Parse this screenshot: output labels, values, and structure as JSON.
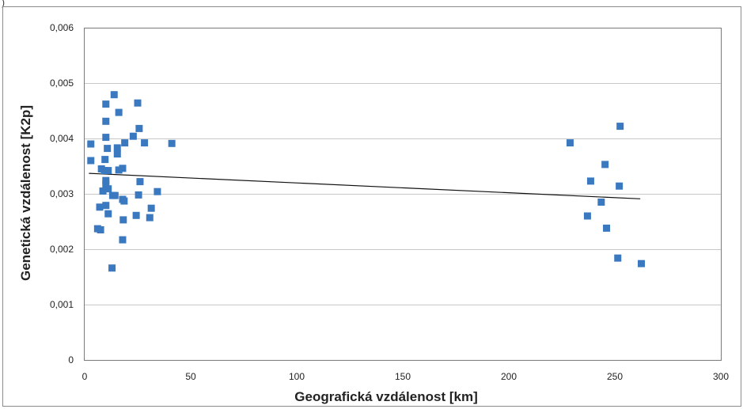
{
  "corner_mark": ")",
  "chart_data": {
    "type": "scatter",
    "xlabel": "Geografická vzdálenost [km]",
    "ylabel": "Genetická vzdálenost  [K2p]",
    "xlim": [
      0,
      300
    ],
    "ylim": [
      0,
      0.006
    ],
    "x_ticks": [
      0,
      50,
      100,
      150,
      200,
      250,
      300
    ],
    "x_tick_labels": [
      "0",
      "50",
      "100",
      "150",
      "200",
      "250",
      "300"
    ],
    "y_ticks": [
      0,
      0.001,
      0.002,
      0.003,
      0.004,
      0.005,
      0.006
    ],
    "y_tick_labels": [
      "0",
      "0,001",
      "0,002",
      "0,003",
      "0,004",
      "0,005",
      "0,006"
    ],
    "grid": "horizontal",
    "legend": "none",
    "marker_color": "#3a78c0",
    "trendline_color": "#111111",
    "trendline": {
      "x": [
        2,
        262
      ],
      "y": [
        0.00337,
        0.00291
      ]
    },
    "points": [
      [
        2.9,
        0.0039
      ],
      [
        2.9,
        0.0036
      ],
      [
        6.1,
        0.00237
      ],
      [
        7.5,
        0.00235
      ],
      [
        7.1,
        0.00276
      ],
      [
        8.6,
        0.00305
      ],
      [
        7.9,
        0.00345
      ],
      [
        9.3,
        0.00342
      ],
      [
        9.6,
        0.00362
      ],
      [
        10.0,
        0.00402
      ],
      [
        10.0,
        0.00431
      ],
      [
        10.0,
        0.00462
      ],
      [
        10.0,
        0.00324
      ],
      [
        10.0,
        0.00317
      ],
      [
        10.0,
        0.00279
      ],
      [
        10.7,
        0.00382
      ],
      [
        11.1,
        0.00342
      ],
      [
        11.1,
        0.00309
      ],
      [
        11.1,
        0.00264
      ],
      [
        13.2,
        0.00297
      ],
      [
        13.9,
        0.00479
      ],
      [
        14.3,
        0.00297
      ],
      [
        15.4,
        0.00383
      ],
      [
        15.4,
        0.00372
      ],
      [
        16.1,
        0.00447
      ],
      [
        16.1,
        0.00343
      ],
      [
        17.9,
        0.00346
      ],
      [
        17.9,
        0.0029
      ],
      [
        18.6,
        0.00287
      ],
      [
        18.2,
        0.00253
      ],
      [
        17.9,
        0.00217
      ],
      [
        12.9,
        0.00166
      ],
      [
        18.9,
        0.00392
      ],
      [
        22.9,
        0.00404
      ],
      [
        25.0,
        0.00464
      ],
      [
        25.7,
        0.00418
      ],
      [
        26.1,
        0.00322
      ],
      [
        25.4,
        0.00298
      ],
      [
        24.3,
        0.00261
      ],
      [
        28.2,
        0.00392
      ],
      [
        30.7,
        0.00257
      ],
      [
        31.4,
        0.00274
      ],
      [
        34.3,
        0.00304
      ],
      [
        41.1,
        0.00391
      ],
      [
        228.9,
        0.00392
      ],
      [
        238.6,
        0.00323
      ],
      [
        237.1,
        0.0026
      ],
      [
        243.6,
        0.00285
      ],
      [
        245.4,
        0.00353
      ],
      [
        246.1,
        0.00238
      ],
      [
        252.5,
        0.00422
      ],
      [
        252.1,
        0.00314
      ],
      [
        251.4,
        0.00184
      ],
      [
        262.5,
        0.00174
      ]
    ]
  }
}
